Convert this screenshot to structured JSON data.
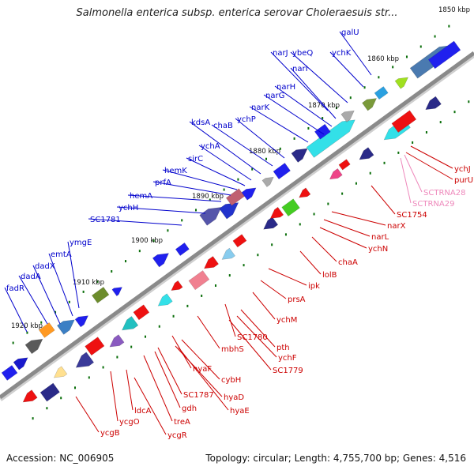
{
  "title": "Salmonella enterica subsp. enterica serovar Choleraesuis str...",
  "footer": {
    "accession": "Accession: NC_006905",
    "summary": "Topology: circular; Length: 4,755,700 bp; Genes: 4,516"
  },
  "colors": {
    "backbone": "#8a8a8a",
    "plus_strand": "#0000ee",
    "minus_strand": "#ee0000",
    "tick": "#0a6e0a",
    "label_plus": "#0000cc",
    "label_minus": "#cc0000",
    "label_trna": "#ee88bb"
  },
  "kbp_markers": [
    "1850 kbp",
    "1860 kbp",
    "1870 kbp",
    "1880 kbp",
    "1890 kbp",
    "1900 kbp",
    "1910 kbp",
    "1920 kbp"
  ],
  "plus_labels": [
    "galU",
    "ychK",
    "ybeQ",
    "narJ",
    "narI",
    "narH",
    "narG",
    "narK",
    "ychP",
    "chaB",
    "kdsA",
    "ychA",
    "sirC",
    "hemK",
    "prfA",
    "hemA",
    "ychH",
    "SC1781",
    "ymgE",
    "emtA",
    "dadX",
    "dadA",
    "fadR"
  ],
  "minus_labels": [
    "ychJ",
    "purU",
    "SC1754",
    "narX",
    "narL",
    "ychN",
    "chaA",
    "lolB",
    "ipk",
    "prsA",
    "ychM",
    "SC1780",
    "pth",
    "ychF",
    "SC1779",
    "mbhS",
    "cybH",
    "hyaF",
    "SC1787",
    "hyaD",
    "hyaE",
    "gdh",
    "treA",
    "ldcA",
    "ycgO",
    "ycgR",
    "ycgB"
  ],
  "trna_labels": [
    "SCTRNA28",
    "SCTRNA29"
  ]
}
